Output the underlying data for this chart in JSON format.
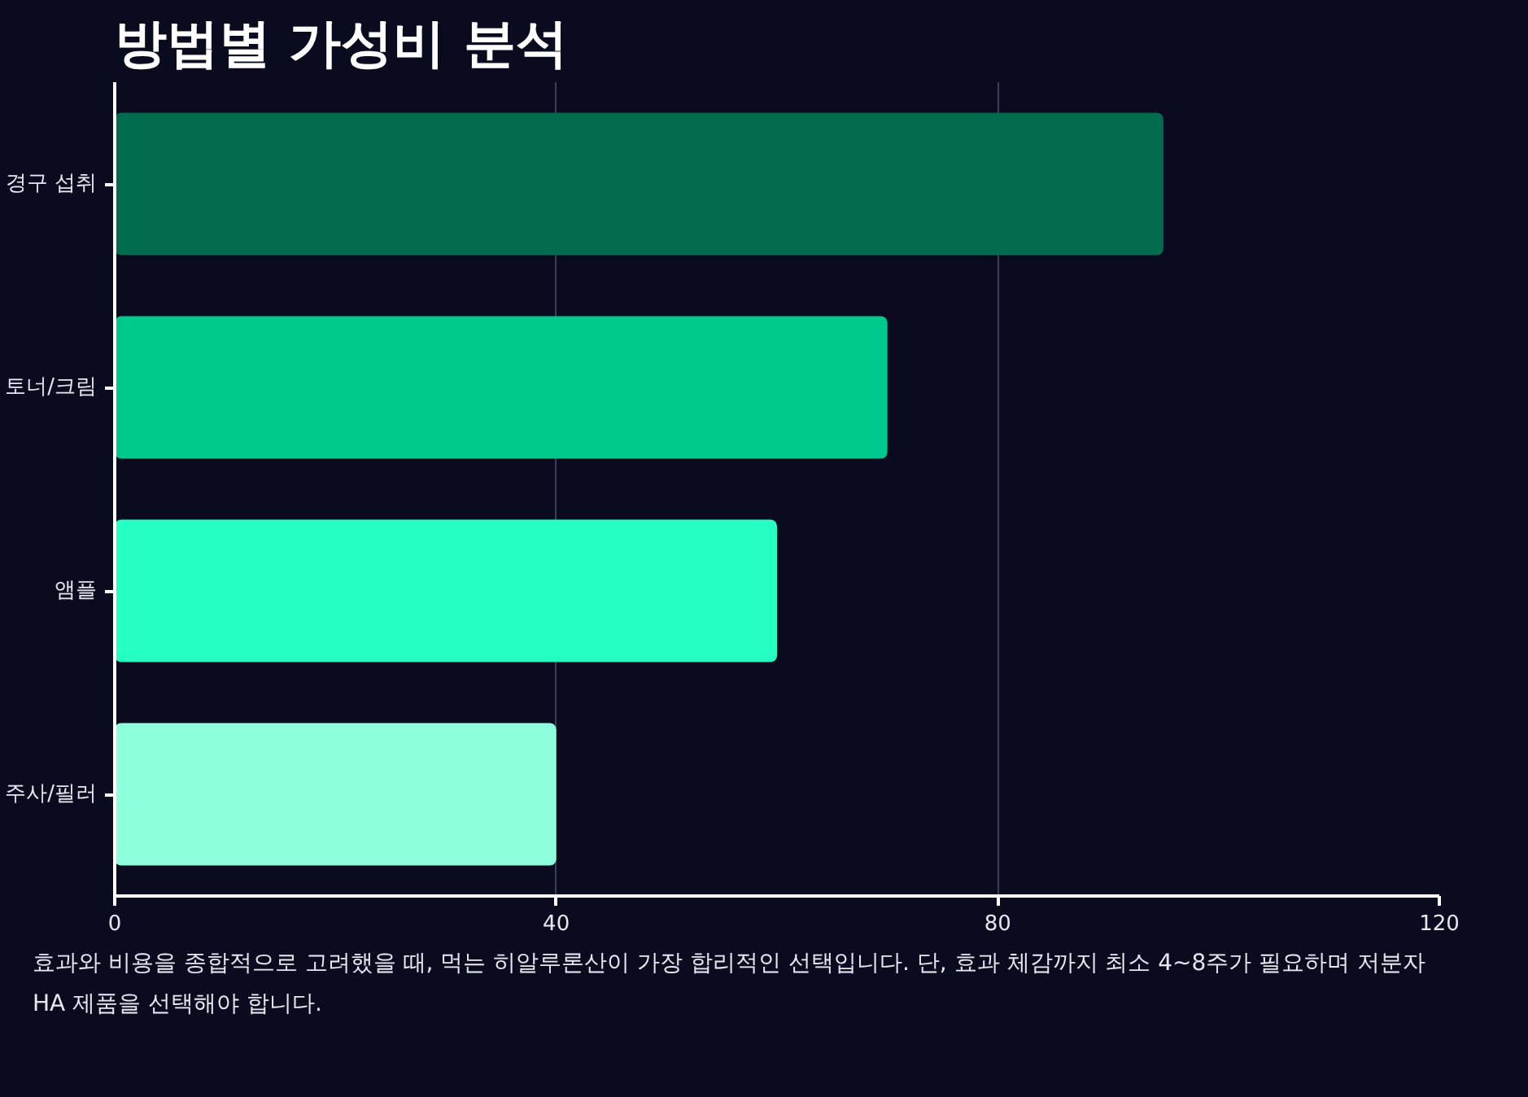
{
  "chart_data": {
    "type": "bar",
    "orientation": "horizontal",
    "title": "방법별 가성비 분석",
    "categories": [
      "경구 섭취",
      "토너/크림",
      "앰플",
      "주사/필러"
    ],
    "values": [
      95,
      70,
      60,
      40
    ],
    "colors": [
      "#006b4d",
      "#00c98d",
      "#26ffc2",
      "#8dffdc"
    ],
    "xlim": [
      0,
      120
    ],
    "xticks": [
      0,
      40,
      80,
      120
    ],
    "grid": "x",
    "annotations": [
      "효과와 비용을 종합적으로 고려했을 때, 먹는 히알루론산이 가장 합리적인 선택입니다. 단, 효과 체감까지 최소 4~8주가 필요하며 저분자 HA 제품을 선택해야 합니다."
    ]
  }
}
